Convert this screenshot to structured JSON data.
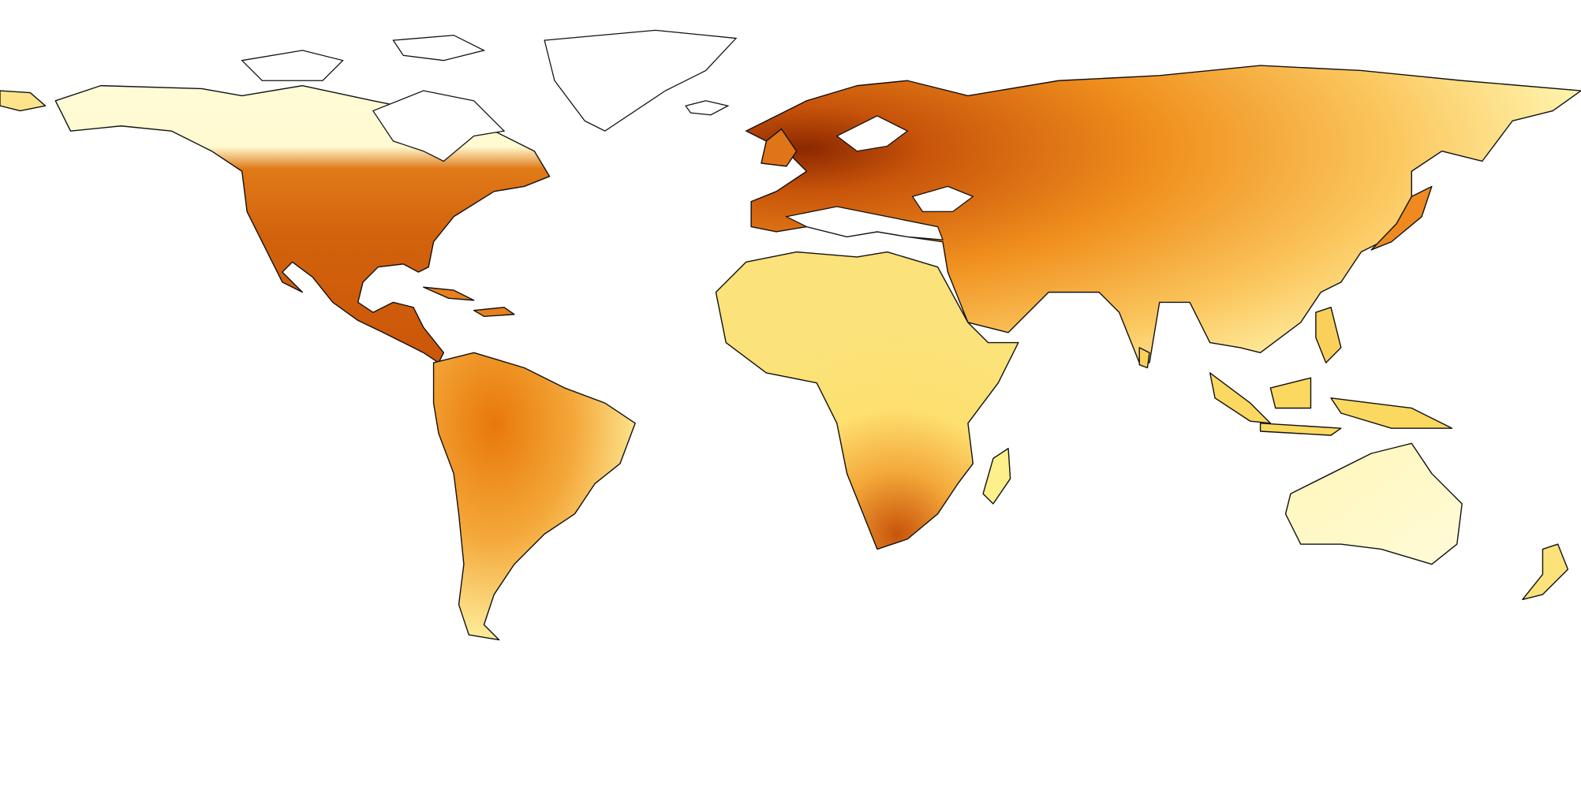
{
  "chart_data": {
    "type": "map"
  }
}
